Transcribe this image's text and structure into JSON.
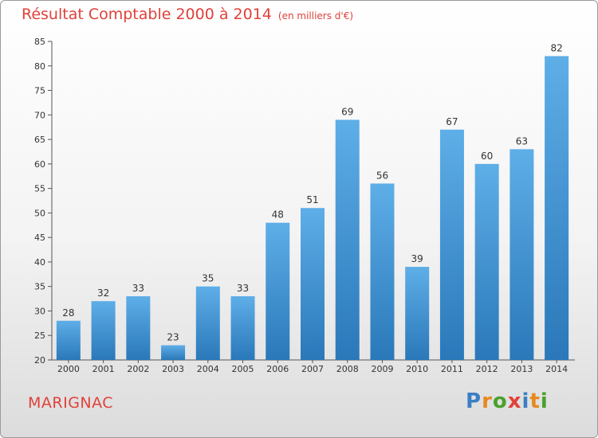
{
  "header": {
    "title": "Résultat Comptable 2000 à 2014",
    "subtitle": "(en milliers d'€)"
  },
  "footer": {
    "place": "MARIGNAC",
    "logo": {
      "letters": [
        "P",
        "r",
        "o",
        "x",
        "i",
        "t",
        "i"
      ],
      "colors": [
        "#3b7fc4",
        "#e58a1f",
        "#4aa02c",
        "#e0413a",
        "#3b7fc4",
        "#e58a1f",
        "#4aa02c"
      ]
    }
  },
  "colors": {
    "bar_top": "#5eaee8",
    "bar_bottom": "#2a78b9",
    "text": "#333333",
    "accent": "#e0413a"
  },
  "chart_data": {
    "type": "bar",
    "title": "Résultat Comptable 2000 à 2014",
    "subtitle": "(en milliers d'€)",
    "xlabel": "",
    "ylabel": "",
    "categories": [
      "2000",
      "2001",
      "2002",
      "2003",
      "2004",
      "2005",
      "2006",
      "2007",
      "2008",
      "2009",
      "2010",
      "2011",
      "2012",
      "2013",
      "2014"
    ],
    "values": [
      28,
      32,
      33,
      23,
      35,
      33,
      48,
      51,
      69,
      56,
      39,
      67,
      60,
      63,
      82
    ],
    "ylim": [
      20,
      85
    ],
    "yticks": [
      20,
      25,
      30,
      35,
      40,
      45,
      50,
      55,
      60,
      65,
      70,
      75,
      80,
      85
    ],
    "data_labels": true,
    "grid": false
  }
}
